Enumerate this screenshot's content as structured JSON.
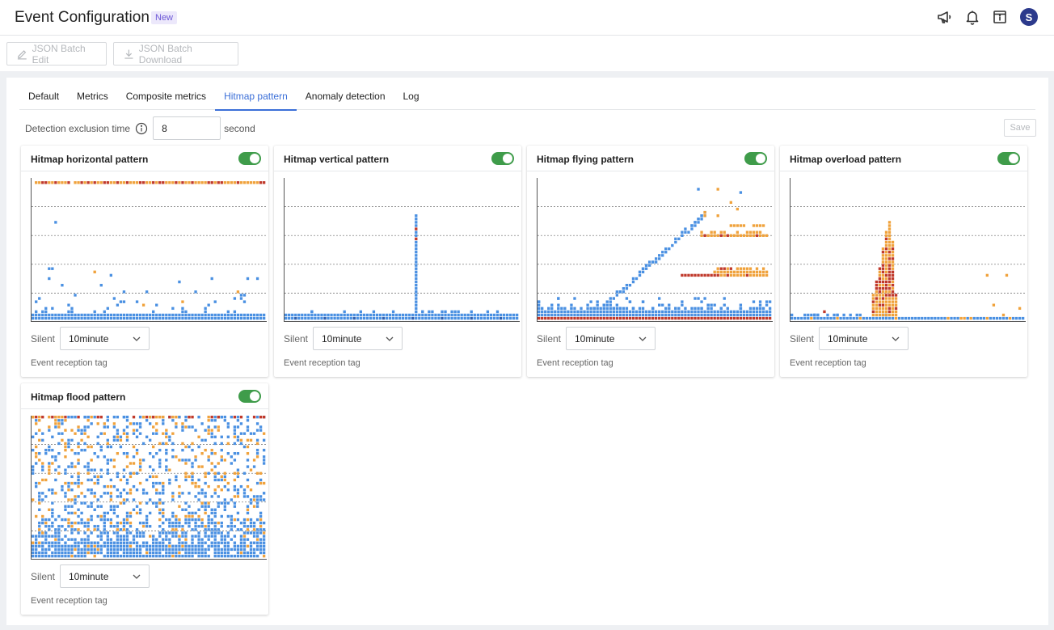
{
  "header": {
    "title": "Event Configuration",
    "badge": "New"
  },
  "header_icons": [
    "megaphone-icon",
    "bell-icon",
    "calendar-info-icon"
  ],
  "user": {
    "avatar_initial": "S",
    "avatar_color": "#2c3a8c"
  },
  "toolbar": {
    "batch_edit_label": "JSON Batch Edit",
    "batch_download_label": "JSON Batch Download"
  },
  "tabs": [
    {
      "label": "Default",
      "active": false
    },
    {
      "label": "Metrics",
      "active": false
    },
    {
      "label": "Composite metrics",
      "active": false
    },
    {
      "label": "Hitmap pattern",
      "active": true
    },
    {
      "label": "Anomaly detection",
      "active": false
    },
    {
      "label": "Log",
      "active": false
    }
  ],
  "exclusion": {
    "label": "Detection exclusion time",
    "value": "8",
    "unit": "second"
  },
  "save_label": "Save",
  "colors": {
    "accent": "#3b6fd8",
    "toggle_on": "#3f9c4a",
    "cell_blue": "#4a90e2",
    "cell_orange": "#f0a23c",
    "cell_red": "#c0392b"
  },
  "cards": [
    {
      "title": "Hitmap horizontal pattern",
      "enabled": true,
      "pattern": "horizontal",
      "silent_label": "Silent",
      "silent_value": "10minute",
      "tag_label": "Event reception tag"
    },
    {
      "title": "Hitmap vertical pattern",
      "enabled": true,
      "pattern": "vertical",
      "silent_label": "Silent",
      "silent_value": "10minute",
      "tag_label": "Event reception tag"
    },
    {
      "title": "Hitmap flying pattern",
      "enabled": true,
      "pattern": "flying",
      "silent_label": "Silent",
      "silent_value": "10minute",
      "tag_label": "Event reception tag"
    },
    {
      "title": "Hitmap overload pattern",
      "enabled": true,
      "pattern": "overload",
      "silent_label": "Silent",
      "silent_value": "10minute",
      "tag_label": "Event reception tag"
    },
    {
      "title": "Hitmap flood pattern",
      "enabled": true,
      "pattern": "flood",
      "silent_label": "Silent",
      "silent_value": "10minute",
      "tag_label": "Event reception tag"
    }
  ]
}
